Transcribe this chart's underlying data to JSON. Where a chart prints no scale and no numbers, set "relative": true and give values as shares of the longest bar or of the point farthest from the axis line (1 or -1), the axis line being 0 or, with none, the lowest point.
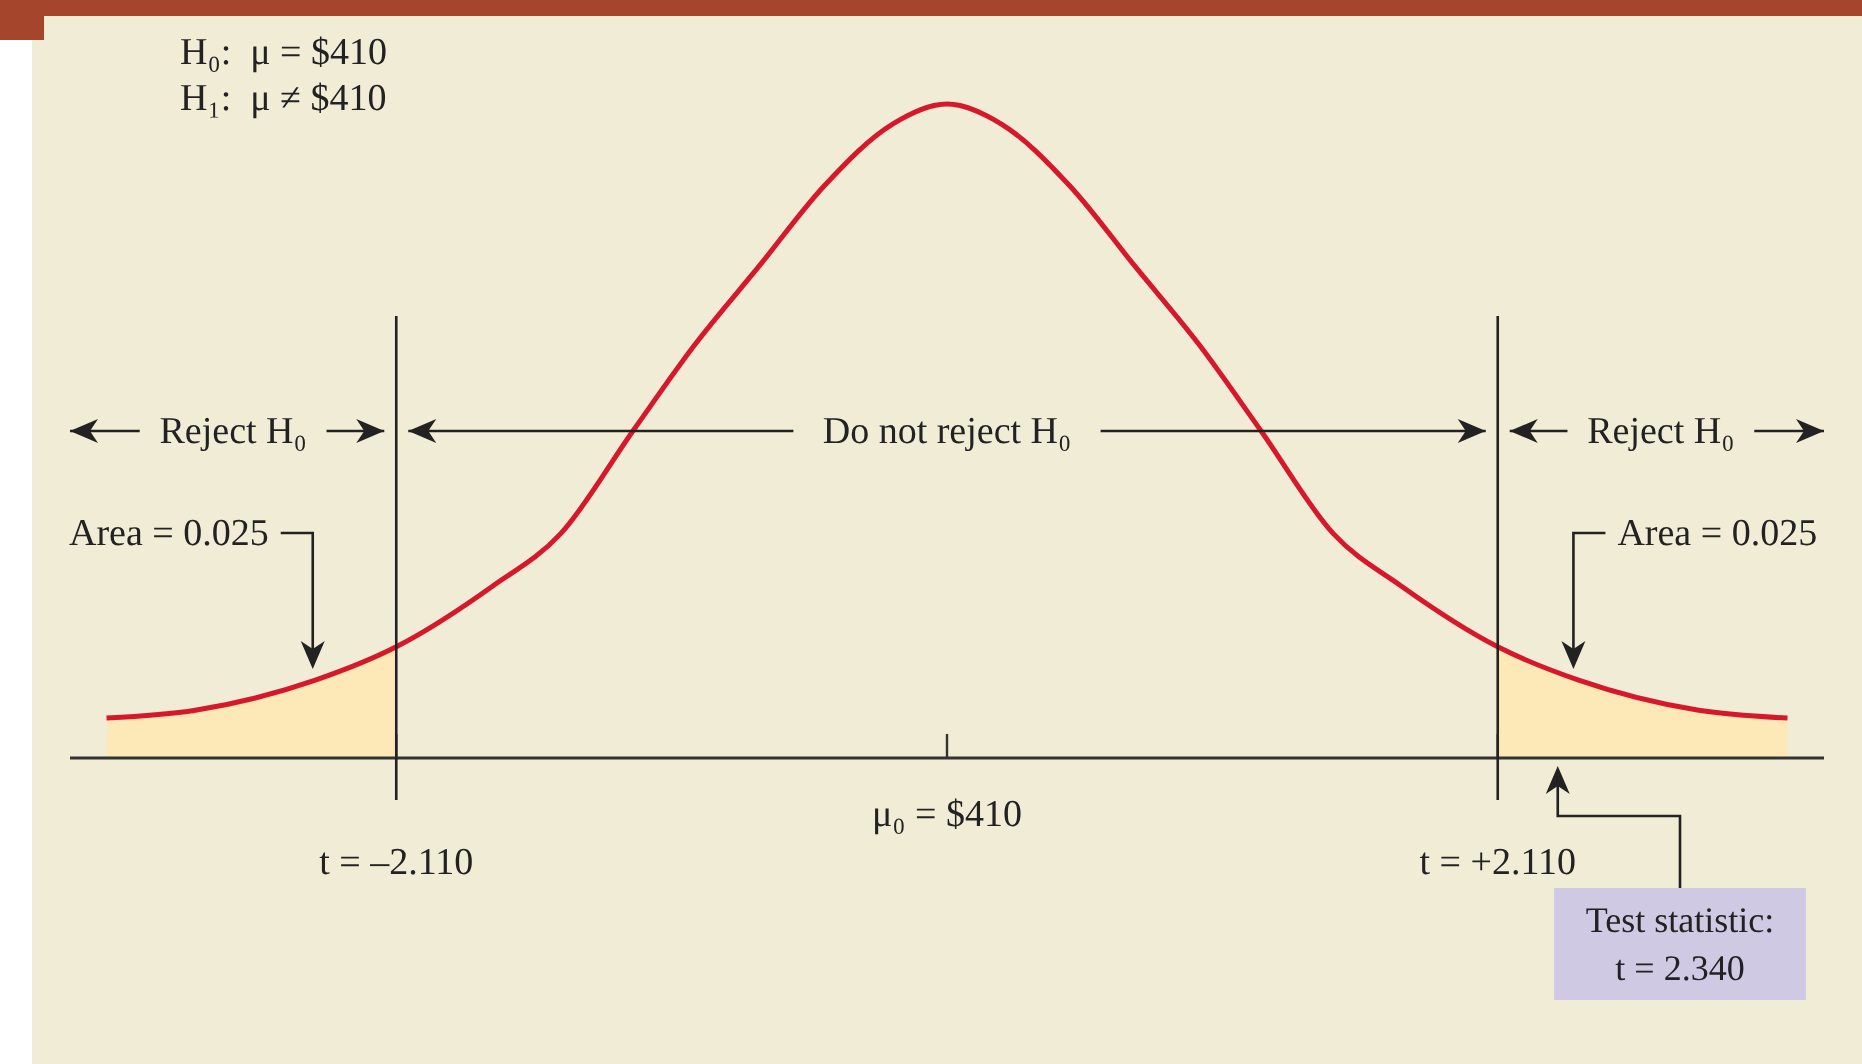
{
  "chart_data": {
    "type": "line",
    "relative": true,
    "xlim": [
      -3.36,
      3.36
    ],
    "xticks": [
      {
        "value": -2.11,
        "label": "t = –2.110"
      },
      {
        "value": 0,
        "label": null
      },
      {
        "value": 2.11,
        "label": "t = +2.110"
      }
    ],
    "series": [
      {
        "type": "area",
        "color": "#fde8b8",
        "x": [
          -3.22,
          -2.88,
          -2.42,
          -2.11
        ],
        "values": [
          0.061,
          0.073,
          0.119,
          0.17
        ]
      },
      {
        "type": "area",
        "color": "#fde8b8",
        "x": [
          2.11,
          2.42,
          2.88,
          3.22
        ],
        "values": [
          0.17,
          0.119,
          0.073,
          0.061
        ]
      },
      {
        "color": "#d7182a",
        "x": [
          -3.22,
          -2.88,
          -2.42,
          -2.11,
          -1.74,
          -1.48,
          -1.2,
          -0.97,
          -0.72,
          -0.47,
          -0.21,
          0,
          0.21,
          0.47,
          0.72,
          0.97,
          1.2,
          1.48,
          1.74,
          2.11,
          2.42,
          2.88,
          3.22
        ],
        "values": [
          0.061,
          0.073,
          0.119,
          0.17,
          0.263,
          0.343,
          0.502,
          0.63,
          0.752,
          0.875,
          0.969,
          1,
          0.969,
          0.875,
          0.752,
          0.63,
          0.502,
          0.343,
          0.263,
          0.17,
          0.119,
          0.073,
          0.061
        ]
      }
    ],
    "ref_lines": [
      {
        "axis": "x",
        "value": -2.11,
        "color": "#222222"
      },
      {
        "axis": "x",
        "value": 2.11,
        "color": "#222222"
      }
    ],
    "annotations": [
      "H₀:  μ = $410",
      "H₁:  μ ≠ $410",
      "Reject H₀",
      "Do not reject H₀",
      "Reject H₀",
      "μ₀ = $410",
      {
        "text": "Area = 0.025",
        "x": -2.43,
        "y": 0.13
      },
      {
        "text": "Area = 0.025",
        "x": 2.4,
        "y": 0.13
      },
      {
        "text": "Test statistic:\nt = 2.340",
        "x": 2.34,
        "y": 0
      }
    ]
  }
}
